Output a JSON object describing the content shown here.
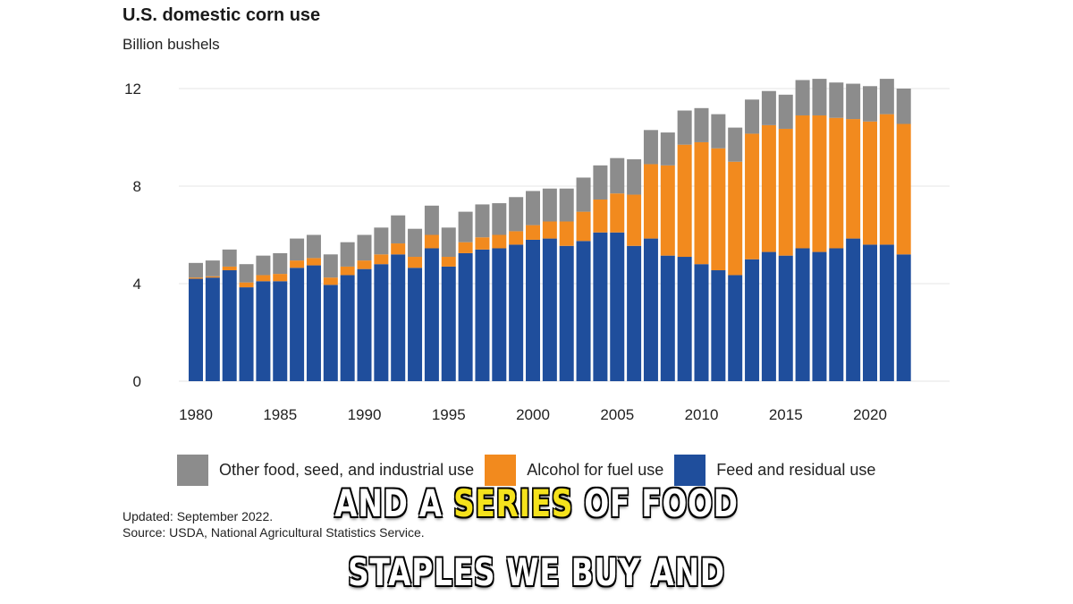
{
  "chart_data": {
    "type": "bar",
    "stacked": true,
    "title": "U.S. domestic corn use",
    "subtitle": "Billion bushels",
    "x": [
      1980,
      1981,
      1982,
      1983,
      1984,
      1985,
      1986,
      1987,
      1988,
      1989,
      1990,
      1991,
      1992,
      1993,
      1994,
      1995,
      1996,
      1997,
      1998,
      1999,
      2000,
      2001,
      2002,
      2003,
      2004,
      2005,
      2006,
      2007,
      2008,
      2009,
      2010,
      2011,
      2012,
      2013,
      2014,
      2015,
      2016,
      2017,
      2018,
      2019,
      2020,
      2021,
      2022
    ],
    "x_ticks": [
      "1980",
      "1985",
      "1990",
      "1995",
      "2000",
      "2005",
      "2010",
      "2015",
      "2020"
    ],
    "y_ticks": [
      "0",
      "4",
      "8",
      "12"
    ],
    "ylim": [
      0,
      12.4
    ],
    "grid": true,
    "series": [
      {
        "name": "Feed and residual use",
        "color": "#1f4e9c",
        "values": [
          4.2,
          4.25,
          4.55,
          3.85,
          4.1,
          4.1,
          4.65,
          4.75,
          3.95,
          4.35,
          4.6,
          4.8,
          5.2,
          4.65,
          5.45,
          4.7,
          5.25,
          5.4,
          5.45,
          5.6,
          5.8,
          5.85,
          5.55,
          5.75,
          6.1,
          6.1,
          5.55,
          5.85,
          5.15,
          5.1,
          4.8,
          4.55,
          4.35,
          5.0,
          5.3,
          5.15,
          5.45,
          5.3,
          5.45,
          5.85,
          5.6,
          5.6,
          5.2
        ]
      },
      {
        "name": "Alcohol for fuel use",
        "color": "#f28a1e",
        "values": [
          0.05,
          0.05,
          0.15,
          0.2,
          0.25,
          0.3,
          0.3,
          0.3,
          0.3,
          0.35,
          0.35,
          0.4,
          0.45,
          0.45,
          0.55,
          0.4,
          0.45,
          0.5,
          0.55,
          0.55,
          0.6,
          0.7,
          1.0,
          1.2,
          1.35,
          1.6,
          2.1,
          3.05,
          3.7,
          4.6,
          5.0,
          5.0,
          4.65,
          5.15,
          5.2,
          5.2,
          5.45,
          5.6,
          5.35,
          4.9,
          5.05,
          5.35,
          5.35
        ]
      },
      {
        "name": "Other food, seed, and industrial use",
        "color": "#8c8c8c",
        "values": [
          0.6,
          0.65,
          0.7,
          0.75,
          0.8,
          0.85,
          0.9,
          0.95,
          0.95,
          1.0,
          1.05,
          1.1,
          1.15,
          1.15,
          1.2,
          1.2,
          1.25,
          1.35,
          1.3,
          1.4,
          1.4,
          1.35,
          1.35,
          1.4,
          1.4,
          1.45,
          1.45,
          1.4,
          1.35,
          1.4,
          1.4,
          1.4,
          1.4,
          1.4,
          1.4,
          1.4,
          1.45,
          1.5,
          1.45,
          1.45,
          1.45,
          1.45,
          1.45
        ]
      }
    ],
    "legend": [
      "Other food, seed, and industrial use",
      "Alcohol for fuel use",
      "Feed and residual use"
    ],
    "legend_position": "bottom"
  },
  "footnotes": {
    "updated": "Updated: September 2022.",
    "source": "Source: USDA, National Agricultural Statistics Service."
  },
  "captions": {
    "line1_a": "AND A ",
    "line1_highlight": "SERIES",
    "line1_b": " OF FOOD",
    "line2": "STAPLES WE BUY AND",
    "highlight_color": "#f5e21c"
  }
}
